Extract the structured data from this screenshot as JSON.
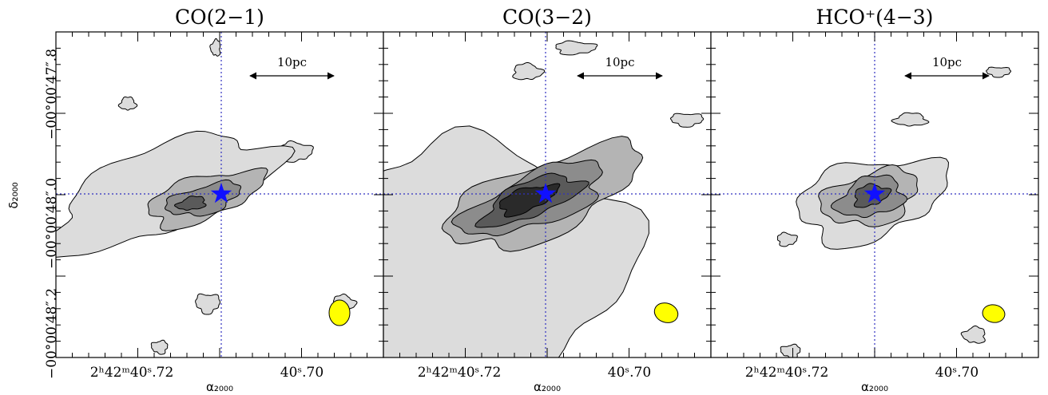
{
  "panels": [
    {
      "title": "CO(2−1)",
      "scale_label": "10pc",
      "x_tick_labels": [
        "2ʰ42ᵐ40ˢ.72",
        "40ˢ.70"
      ],
      "x_axis_label": "α₂₀₀₀"
    },
    {
      "title": "CO(3−2)",
      "scale_label": "10pc",
      "x_tick_labels": [
        "2ʰ42ᵐ40ˢ.72",
        "40ˢ.70"
      ],
      "x_axis_label": "α₂₀₀₀"
    },
    {
      "title": "HCO⁺(4−3)",
      "scale_label": "10pc",
      "x_tick_labels": [
        "2ʰ42ᵐ40ˢ.72",
        "40ˢ.70"
      ],
      "x_axis_label": "α₂₀₀₀"
    }
  ],
  "y_axis": {
    "label": "δ₂₀₀₀",
    "tick_labels": [
      "−00°00′47″.8",
      "−00°00′48″.0",
      "−00°00′48″.2"
    ]
  }
}
